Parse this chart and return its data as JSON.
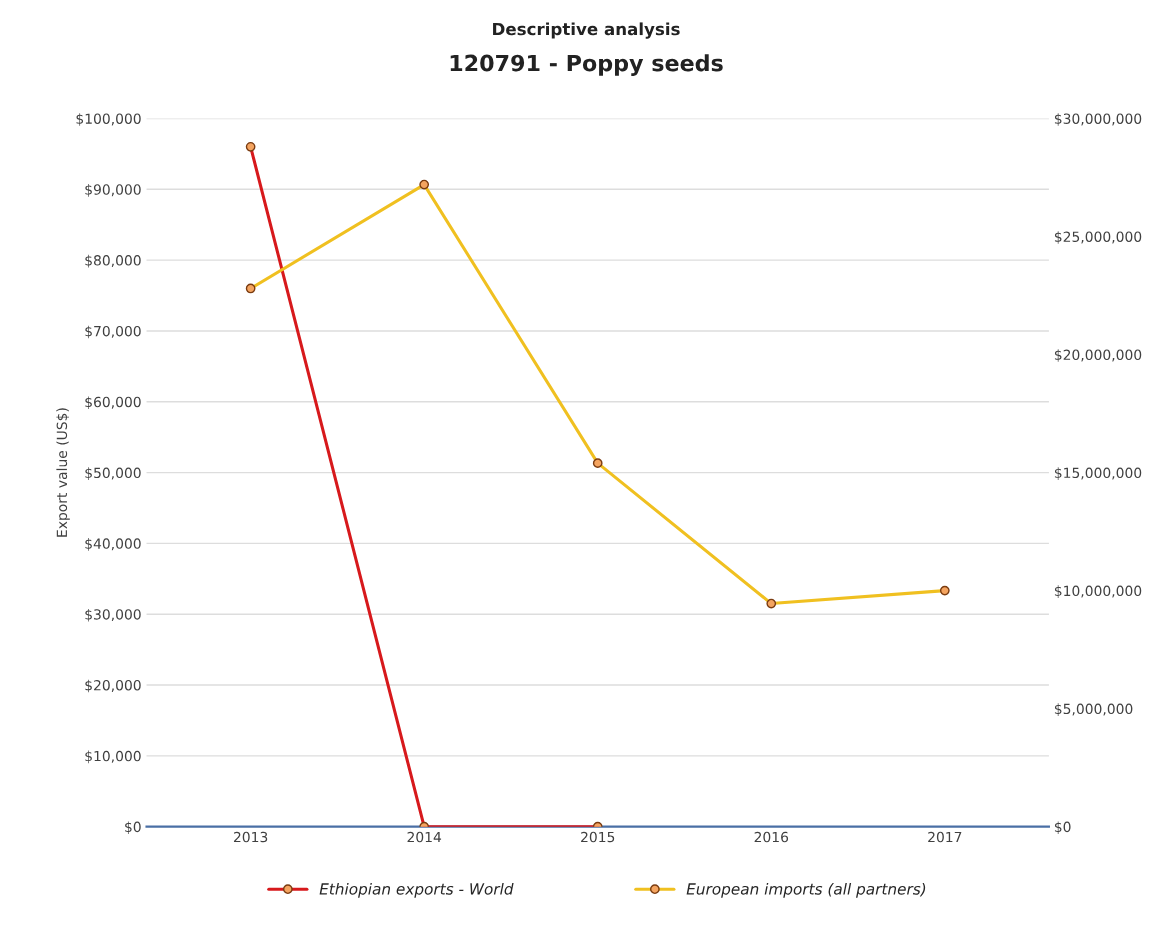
{
  "chart_data": {
    "type": "line",
    "title": "120791 - Poppy seeds",
    "subtitle": "Descriptive analysis",
    "ylabel": "Export value (US$)",
    "categories": [
      "2013",
      "2014",
      "2015",
      "2016",
      "2017"
    ],
    "series": [
      {
        "name": "Ethiopian exports - World",
        "color": "#d7191c",
        "values": [
          96000,
          0,
          0,
          null,
          null
        ]
      },
      {
        "name": "European imports (all partners)",
        "color": "#f0c020",
        "axis": "y2",
        "values": [
          22800000,
          27200000,
          15400000,
          9450000,
          10000000
        ]
      }
    ],
    "ylim": [
      0,
      100000
    ],
    "yticks": [
      {
        "value": 0,
        "label": "$0"
      },
      {
        "value": 10000,
        "label": "$10,000"
      },
      {
        "value": 20000,
        "label": "$20,000"
      },
      {
        "value": 30000,
        "label": "$30,000"
      },
      {
        "value": 40000,
        "label": "$40,000"
      },
      {
        "value": 50000,
        "label": "$50,000"
      },
      {
        "value": 60000,
        "label": "$60,000"
      },
      {
        "value": 70000,
        "label": "$70,000"
      },
      {
        "value": 80000,
        "label": "$80,000"
      },
      {
        "value": 90000,
        "label": "$90,000"
      },
      {
        "value": 100000,
        "label": "$100,000"
      }
    ],
    "y2lim": [
      0,
      30000000
    ],
    "y2ticks": [
      {
        "value": 0,
        "label": "$0"
      },
      {
        "value": 5000000,
        "label": "$5,000,000"
      },
      {
        "value": 10000000,
        "label": "$10,000,000"
      },
      {
        "value": 15000000,
        "label": "$15,000,000"
      },
      {
        "value": 20000000,
        "label": "$20,000,000"
      },
      {
        "value": 25000000,
        "label": "$25,000,000"
      },
      {
        "value": 30000000,
        "label": "$30,000,000"
      }
    ],
    "grid": "y",
    "legend": "bottom",
    "marker": "circle",
    "line_style": "solid"
  }
}
